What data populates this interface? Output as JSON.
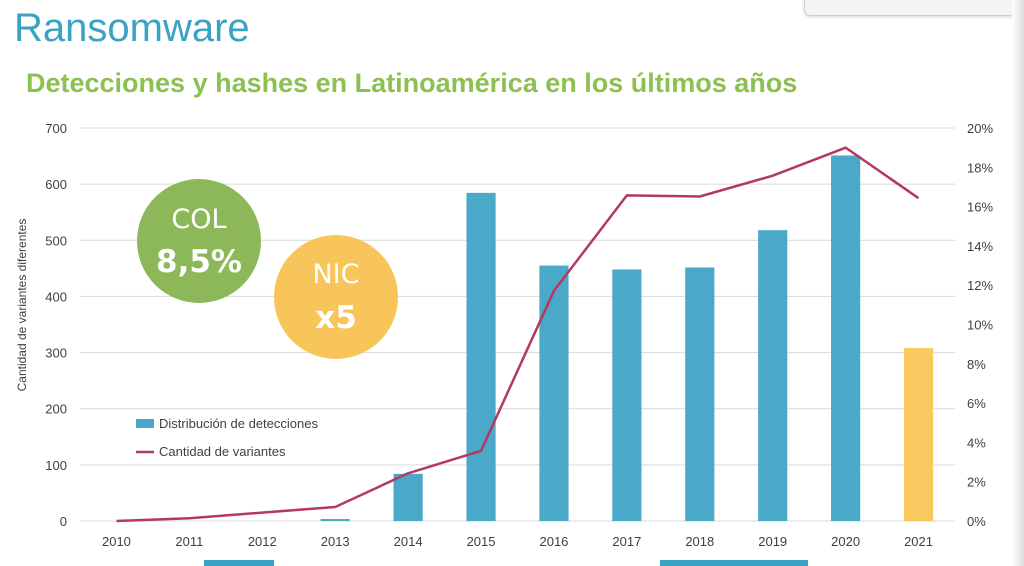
{
  "slide": {
    "title": "Ransomware",
    "subtitle": "Detecciones y hashes en Latinoamérica en los últimos años"
  },
  "callouts": [
    {
      "label": "COL",
      "value": "8,5%",
      "color": "#8cb85a"
    },
    {
      "label": "NIC",
      "value": "x5",
      "color": "#f7c55a"
    }
  ],
  "chart_data": {
    "type": "bar",
    "categories": [
      "2010",
      "2011",
      "2012",
      "2013",
      "2014",
      "2015",
      "2016",
      "2017",
      "2018",
      "2019",
      "2020",
      "2021"
    ],
    "ylabel": "Cantidad de variantes diferentes",
    "ylim": [
      0,
      700
    ],
    "y_ticks": [
      0,
      100,
      200,
      300,
      400,
      500,
      600,
      700
    ],
    "y2lim": [
      0,
      20
    ],
    "y2_ticks": [
      "0%",
      "2%",
      "4%",
      "6%",
      "8%",
      "10%",
      "12%",
      "14%",
      "16%",
      "18%",
      "20%"
    ],
    "grid": true,
    "legend_position": "bottom-left",
    "series": [
      {
        "name": "Distribución de detecciones",
        "kind": "bar",
        "axis": "right",
        "color": "#4aa9c9",
        "highlight_color": "#f9c85e",
        "highlight_index": 11,
        "values": [
          0,
          0,
          0,
          0.1,
          2.4,
          16.7,
          13.0,
          12.8,
          12.9,
          14.8,
          18.6,
          8.8
        ]
      },
      {
        "name": "Cantidad de variantes",
        "kind": "line",
        "axis": "left",
        "color": "#b23a62",
        "values": [
          0,
          5,
          15,
          25,
          85,
          125,
          410,
          580,
          578,
          615,
          665,
          575
        ]
      }
    ]
  }
}
